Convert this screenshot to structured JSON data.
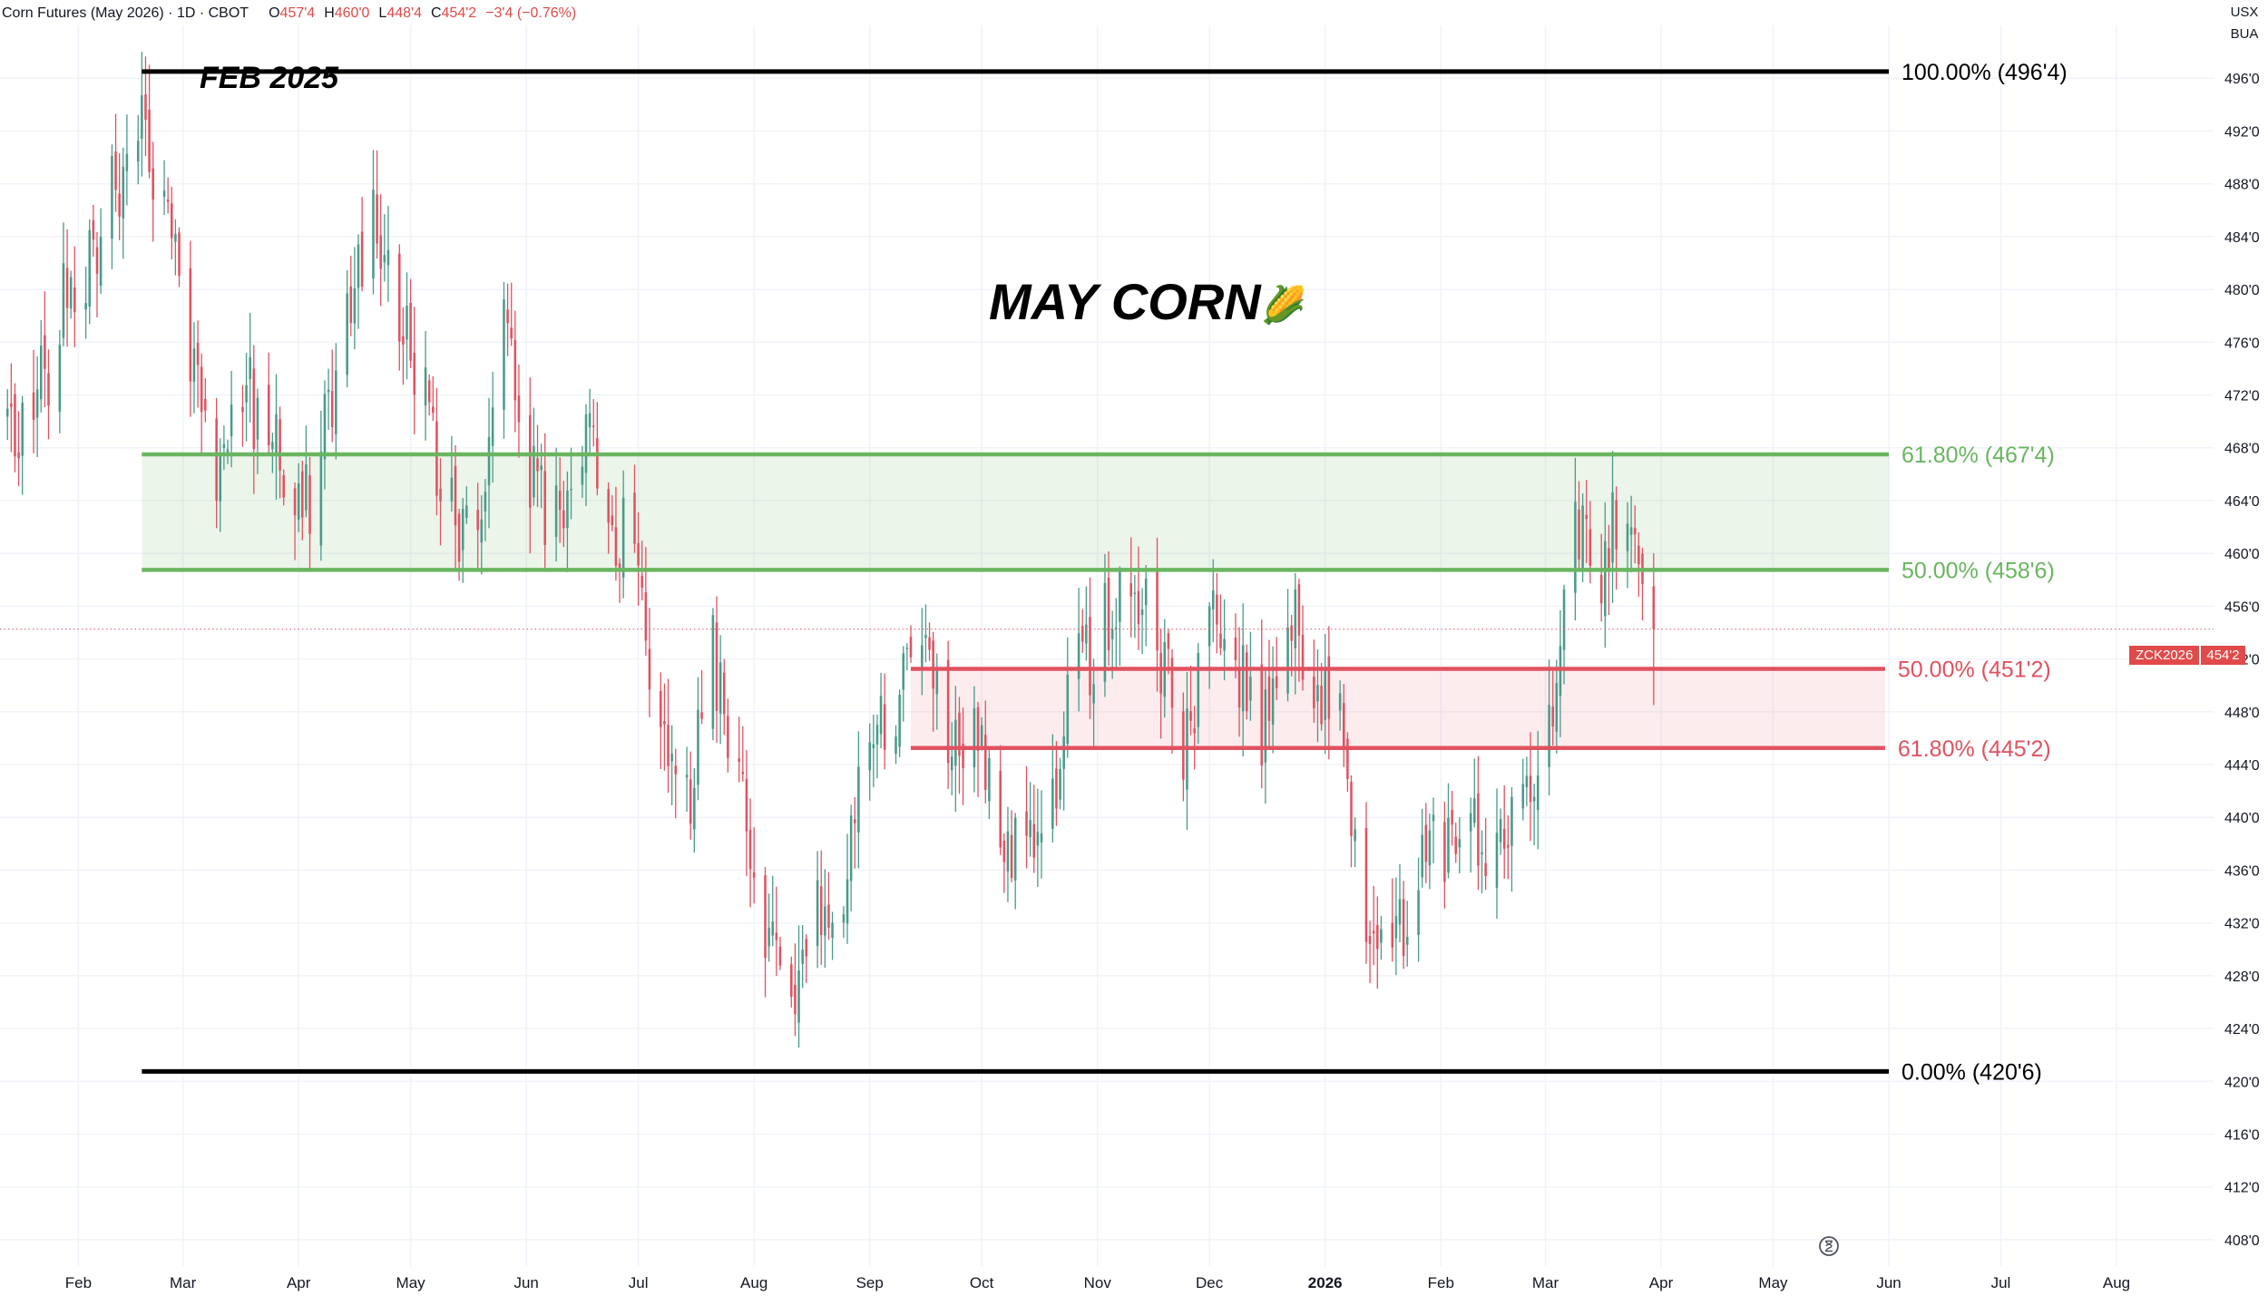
{
  "header": {
    "title": "Corn Futures (May 2026) · 1D · CBOT",
    "open_label": "O",
    "open": "457'4",
    "high_label": "H",
    "high": "460'0",
    "low_label": "L",
    "low": "448'4",
    "close_label": "C",
    "close": "454'2",
    "change": "−3'4 (−0.76%)"
  },
  "currency": "USX",
  "unit": "BUA",
  "price_tag": {
    "symbol": "ZCK2026",
    "price": "454'2"
  },
  "icons": {
    "clock": "clock-icon",
    "corn": "corn-emoji-icon"
  },
  "colors": {
    "up": "#4a9a8a",
    "down": "#e05260",
    "fib_green": "#6ab560",
    "fib_red": "#e05260",
    "fib_black": "#000000",
    "background": "#ffffff"
  },
  "chart_data": {
    "type": "candlestick",
    "title": "MAY CORN",
    "title_emoji": "🌽",
    "annotation": "FEB 2025",
    "y_unit": "US cents per bushel (fractional eighths notation)",
    "ylim": [
      406,
      500
    ],
    "y_ticks": [
      "408'0",
      "412'0",
      "416'0",
      "420'0",
      "424'0",
      "428'0",
      "432'0",
      "436'0",
      "440'0",
      "444'0",
      "448'0",
      "452'0",
      "456'0",
      "460'0",
      "464'0",
      "468'0",
      "472'0",
      "476'0",
      "480'0",
      "484'0",
      "488'0",
      "492'0",
      "496'0"
    ],
    "y_tick_values": [
      408,
      412,
      416,
      420,
      424,
      428,
      432,
      436,
      440,
      444,
      448,
      452,
      456,
      460,
      464,
      468,
      472,
      476,
      480,
      484,
      488,
      492,
      496
    ],
    "x_ticks": [
      {
        "label": "Feb",
        "date": "2025-02-01"
      },
      {
        "label": "Mar",
        "date": "2025-03-01"
      },
      {
        "label": "Apr",
        "date": "2025-04-01"
      },
      {
        "label": "May",
        "date": "2025-05-01"
      },
      {
        "label": "Jun",
        "date": "2025-06-01"
      },
      {
        "label": "Jul",
        "date": "2025-07-01"
      },
      {
        "label": "Aug",
        "date": "2025-08-01"
      },
      {
        "label": "Sep",
        "date": "2025-09-01"
      },
      {
        "label": "Oct",
        "date": "2025-10-01"
      },
      {
        "label": "Nov",
        "date": "2025-11-01"
      },
      {
        "label": "Dec",
        "date": "2025-12-01"
      },
      {
        "label": "2026",
        "date": "2026-01-01",
        "bold": true
      },
      {
        "label": "Feb",
        "date": "2026-02-01"
      },
      {
        "label": "Mar",
        "date": "2026-03-01"
      },
      {
        "label": "Apr",
        "date": "2026-04-01"
      },
      {
        "label": "May",
        "date": "2026-05-01"
      },
      {
        "label": "Jun",
        "date": "2026-06-01"
      },
      {
        "label": "Jul",
        "date": "2026-07-01"
      },
      {
        "label": "Aug",
        "date": "2026-08-01"
      }
    ],
    "x_range": [
      "2025-01-11",
      "2026-08-27"
    ],
    "grid": true,
    "last_price": 454.25,
    "fib_levels": [
      {
        "label": "100.00% (496'4)",
        "value": 496.5,
        "color": "black",
        "from": "2025-02-18",
        "to": "2026-06-01"
      },
      {
        "label": "61.80% (467'4)",
        "value": 467.5,
        "color": "green",
        "from": "2025-02-18",
        "to": "2026-06-01"
      },
      {
        "label": "50.00% (458'6)",
        "value": 458.75,
        "color": "green",
        "from": "2025-02-18",
        "to": "2026-06-01"
      },
      {
        "label": "50.00% (451'2)",
        "value": 451.25,
        "color": "red",
        "from": "2025-09-12",
        "to": "2026-05-31"
      },
      {
        "label": "61.80% (445'2)",
        "value": 445.25,
        "color": "red",
        "from": "2025-09-12",
        "to": "2026-05-31"
      },
      {
        "label": "0.00% (420'6)",
        "value": 420.75,
        "color": "black",
        "from": "2025-02-18",
        "to": "2026-06-01"
      }
    ],
    "zones": [
      {
        "from": "2025-02-18",
        "to": "2026-06-01",
        "top": 467.5,
        "bottom": 458.75,
        "color": "green"
      },
      {
        "from": "2025-09-12",
        "to": "2026-05-31",
        "top": 451.25,
        "bottom": 445.25,
        "color": "red"
      }
    ],
    "price_path": [
      [
        "2025-01-13",
        471
      ],
      [
        "2025-01-20",
        470
      ],
      [
        "2025-01-27",
        478
      ],
      [
        "2025-02-03",
        482
      ],
      [
        "2025-02-10",
        487
      ],
      [
        "2025-02-18",
        494
      ],
      [
        "2025-02-24",
        485
      ],
      [
        "2025-03-03",
        475
      ],
      [
        "2025-03-10",
        466
      ],
      [
        "2025-03-17",
        472
      ],
      [
        "2025-03-24",
        470
      ],
      [
        "2025-03-31",
        461
      ],
      [
        "2025-04-07",
        467
      ],
      [
        "2025-04-14",
        480
      ],
      [
        "2025-04-21",
        486
      ],
      [
        "2025-04-28",
        477
      ],
      [
        "2025-05-05",
        471
      ],
      [
        "2025-05-12",
        463
      ],
      [
        "2025-05-19",
        462
      ],
      [
        "2025-05-26",
        476
      ],
      [
        "2025-06-02",
        466
      ],
      [
        "2025-06-09",
        462
      ],
      [
        "2025-06-16",
        470
      ],
      [
        "2025-06-23",
        463
      ],
      [
        "2025-06-30",
        459
      ],
      [
        "2025-07-07",
        446
      ],
      [
        "2025-07-14",
        441
      ],
      [
        "2025-07-21",
        452
      ],
      [
        "2025-07-28",
        444
      ],
      [
        "2025-08-04",
        432
      ],
      [
        "2025-08-11",
        424
      ],
      [
        "2025-08-18",
        432
      ],
      [
        "2025-08-25",
        436
      ],
      [
        "2025-09-01",
        446
      ],
      [
        "2025-09-08",
        449
      ],
      [
        "2025-09-15",
        455
      ],
      [
        "2025-09-22",
        447
      ],
      [
        "2025-09-29",
        445
      ],
      [
        "2025-10-06",
        440
      ],
      [
        "2025-10-13",
        437
      ],
      [
        "2025-10-20",
        443
      ],
      [
        "2025-10-27",
        451
      ],
      [
        "2025-11-03",
        455
      ],
      [
        "2025-11-10",
        459
      ],
      [
        "2025-11-17",
        453
      ],
      [
        "2025-11-24",
        446
      ],
      [
        "2025-12-01",
        454
      ],
      [
        "2025-12-08",
        452
      ],
      [
        "2025-12-15",
        446
      ],
      [
        "2025-12-22",
        457
      ],
      [
        "2025-12-29",
        447
      ],
      [
        "2026-01-05",
        450
      ],
      [
        "2026-01-12",
        430
      ],
      [
        "2026-01-19",
        430
      ],
      [
        "2026-01-26",
        436
      ],
      [
        "2026-02-02",
        438
      ],
      [
        "2026-02-09",
        440
      ],
      [
        "2026-02-16",
        437
      ],
      [
        "2026-02-23",
        441
      ],
      [
        "2026-03-02",
        448
      ],
      [
        "2026-03-09",
        462
      ],
      [
        "2026-03-16",
        459
      ],
      [
        "2026-03-23",
        465
      ],
      [
        "2026-03-30",
        454.25
      ]
    ]
  }
}
